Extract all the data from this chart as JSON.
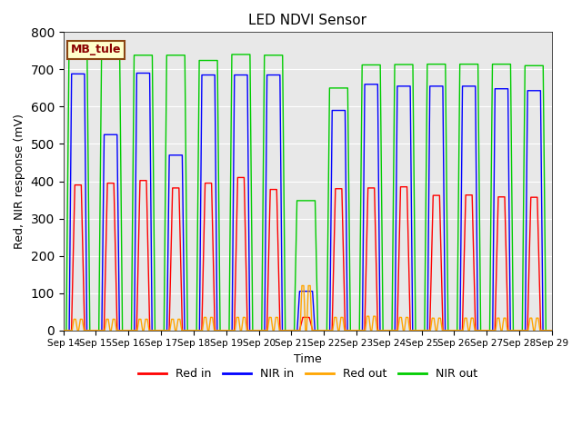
{
  "title": "LED NDVI Sensor",
  "ylabel": "Red, NIR response (mV)",
  "xlabel": "Time",
  "xlim": [
    0,
    15
  ],
  "ylim": [
    0,
    800
  ],
  "yticks": [
    0,
    100,
    200,
    300,
    400,
    500,
    600,
    700,
    800
  ],
  "x_tick_labels": [
    "Sep 14",
    "Sep 15",
    "Sep 16",
    "Sep 17",
    "Sep 18",
    "Sep 19",
    "Sep 20",
    "Sep 21",
    "Sep 22",
    "Sep 23",
    "Sep 24",
    "Sep 25",
    "Sep 26",
    "Sep 27",
    "Sep 28",
    "Sep 29"
  ],
  "bg_color": "#e8e8e8",
  "annotation_text": "MB_tule",
  "annotation_color": "#8b0000",
  "annotation_bg": "#ffffcc",
  "annotation_border": "#8b4513",
  "colors": {
    "red_in": "#ff0000",
    "nir_in": "#0000ff",
    "red_out": "#ffa500",
    "nir_out": "#00cc00"
  },
  "legend_labels": [
    "Red in",
    "NIR in",
    "Red out",
    "NIR out"
  ],
  "spike_centers": [
    0.45,
    1.45,
    2.45,
    3.45,
    4.45,
    5.45,
    6.45,
    7.45,
    8.45,
    9.45,
    10.45,
    11.45,
    12.45,
    13.45,
    14.45
  ],
  "peak_red_in": [
    390,
    395,
    402,
    382,
    395,
    410,
    378,
    35,
    380,
    382,
    385,
    362,
    363,
    358,
    357
  ],
  "peak_nir_in": [
    688,
    525,
    690,
    470,
    685,
    685,
    685,
    105,
    590,
    660,
    655,
    655,
    655,
    648,
    643
  ],
  "peak_red_out": [
    30,
    30,
    30,
    30,
    35,
    35,
    35,
    120,
    35,
    38,
    35,
    33,
    33,
    33,
    33
  ],
  "peak_nir_out": [
    740,
    745,
    738,
    738,
    724,
    740,
    738,
    348,
    650,
    712,
    713,
    714,
    714,
    714,
    710
  ],
  "figsize": [
    6.4,
    4.8
  ],
  "dpi": 100
}
